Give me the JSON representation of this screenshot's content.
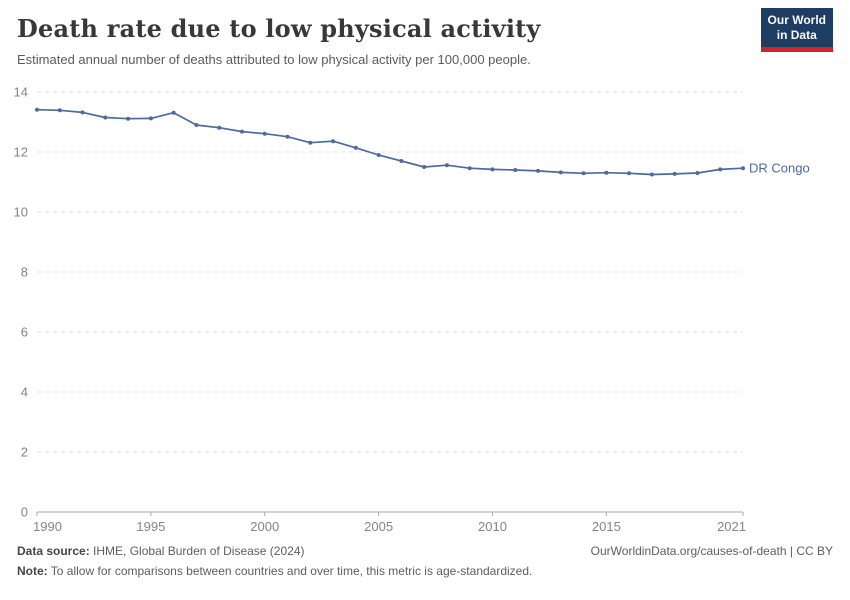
{
  "chart_data": {
    "type": "line",
    "title": "Death rate due to low physical activity",
    "subtitle": "Estimated annual number of deaths attributed to low physical activity per 100,000 people.",
    "x": [
      1990,
      1991,
      1992,
      1993,
      1994,
      1995,
      1996,
      1997,
      1998,
      1999,
      2000,
      2001,
      2002,
      2003,
      2004,
      2005,
      2006,
      2007,
      2008,
      2009,
      2010,
      2011,
      2012,
      2013,
      2014,
      2015,
      2016,
      2017,
      2018,
      2019,
      2020,
      2021
    ],
    "series": [
      {
        "name": "DR Congo",
        "color": "#4c6a9c",
        "values": [
          13.41,
          13.39,
          13.32,
          13.15,
          13.11,
          13.12,
          13.31,
          12.9,
          12.81,
          12.68,
          12.61,
          12.51,
          12.31,
          12.36,
          12.14,
          11.9,
          11.7,
          11.5,
          11.56,
          11.46,
          11.42,
          11.4,
          11.37,
          11.32,
          11.29,
          11.31,
          11.29,
          11.25,
          11.27,
          11.3,
          11.42,
          11.46
        ]
      }
    ],
    "xlabel": "",
    "ylabel": "",
    "ylim": [
      0,
      14
    ],
    "yticks": [
      0,
      2,
      4,
      6,
      8,
      10,
      12,
      14
    ],
    "xticks": [
      1990,
      1995,
      2000,
      2005,
      2010,
      2015,
      2021
    ],
    "grid": "horizontal-dashed",
    "legend": "end-of-line-label"
  },
  "logo": {
    "line1": "Our World",
    "line2": "in Data",
    "bg_color": "#1d3d63",
    "bar_color": "#cf2331"
  },
  "footer": {
    "source_label": "Data source:",
    "source_value": "IHME, Global Burden of Disease (2024)",
    "rights": "OurWorldinData.org/causes-of-death | CC BY",
    "note_label": "Note:",
    "note_text": "To allow for comparisons between countries and over time, this metric is age-standardized."
  },
  "colors": {
    "line": "#4c6a9c",
    "gridline": "#e1e1e1",
    "axis": "#a7a7a7",
    "axis_text": "#858585",
    "title_text": "#383838",
    "subtitle_text": "#5b5b5b"
  }
}
